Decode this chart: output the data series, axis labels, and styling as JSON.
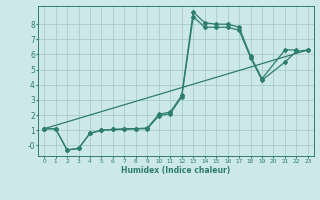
{
  "xlabel": "Humidex (Indice chaleur)",
  "bg_color": "#cce8e8",
  "grid_color": "#aacccc",
  "line_color": "#2e7d6e",
  "xlim": [
    -0.5,
    23.5
  ],
  "ylim": [
    -0.7,
    9.2
  ],
  "xticks": [
    0,
    1,
    2,
    3,
    4,
    5,
    6,
    7,
    8,
    9,
    10,
    11,
    12,
    13,
    14,
    15,
    16,
    17,
    18,
    19,
    20,
    21,
    22,
    23
  ],
  "yticks": [
    0,
    1,
    2,
    3,
    4,
    5,
    6,
    7,
    8
  ],
  "ytick_labels": [
    "-0",
    "1",
    "2",
    "3",
    "4",
    "5",
    "6",
    "7",
    "8"
  ],
  "series": [
    {
      "x": [
        0,
        1,
        2,
        3,
        4,
        5,
        6,
        7,
        8,
        9,
        10,
        11,
        12,
        13,
        14,
        15,
        16,
        17,
        18,
        19,
        21,
        22
      ],
      "y": [
        1.1,
        1.1,
        -0.3,
        -0.2,
        0.8,
        1.0,
        1.05,
        1.1,
        1.1,
        1.15,
        2.05,
        2.2,
        3.3,
        8.8,
        8.1,
        8.0,
        8.0,
        7.8,
        5.9,
        4.4,
        6.3,
        6.3
      ]
    },
    {
      "x": [
        0,
        1,
        2,
        3,
        4,
        5,
        6,
        7,
        8,
        9,
        10,
        11,
        12,
        13,
        14,
        15,
        16,
        17,
        18,
        19,
        21,
        22,
        23
      ],
      "y": [
        1.1,
        1.1,
        -0.3,
        -0.2,
        0.8,
        1.0,
        1.05,
        1.05,
        1.1,
        1.1,
        1.95,
        2.1,
        3.2,
        8.5,
        7.8,
        7.8,
        7.8,
        7.6,
        5.8,
        4.3,
        5.5,
        6.2,
        6.3
      ]
    },
    {
      "x": [
        0,
        23
      ],
      "y": [
        1.1,
        6.3
      ]
    }
  ]
}
